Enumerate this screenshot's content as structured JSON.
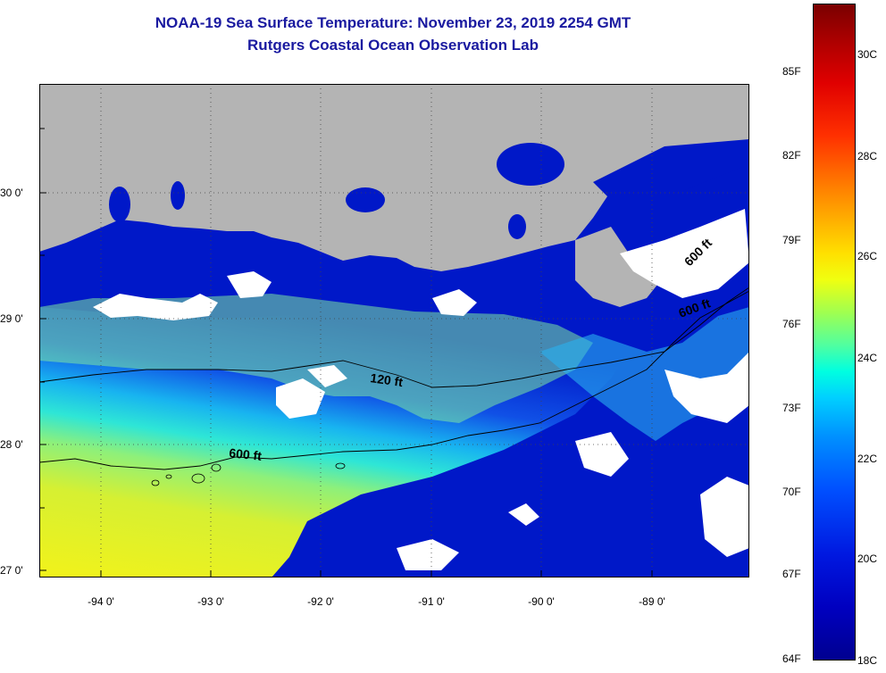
{
  "title_line1": "NOAA-19 Sea Surface Temperature:  November 23, 2019 2254 GMT",
  "title_line2": "Rutgers Coastal Ocean Observation Lab",
  "lat_labels": [
    "30 0'",
    "29 0'",
    "28 0'",
    "27 0'"
  ],
  "lon_labels": [
    "-94 0'",
    "-93 0'",
    "-92 0'",
    "-91 0'",
    "-90 0'",
    "-89 0'"
  ],
  "contour_labels": {
    "c120": "120 ft",
    "c600_west": "600 ft",
    "c600_east": "600 ft",
    "c600_ne": "600 ft"
  },
  "colorbar": {
    "fahrenheit": [
      "85F",
      "82F",
      "79F",
      "76F",
      "73F",
      "70F",
      "67F",
      "64F"
    ],
    "celsius": [
      "30C",
      "28C",
      "26C",
      "24C",
      "22C",
      "20C",
      "18C"
    ]
  },
  "colors": {
    "land": "#b4b4b4",
    "cloud": "#ffffff",
    "cold": "#0010c8",
    "warm": "#e8f020"
  }
}
